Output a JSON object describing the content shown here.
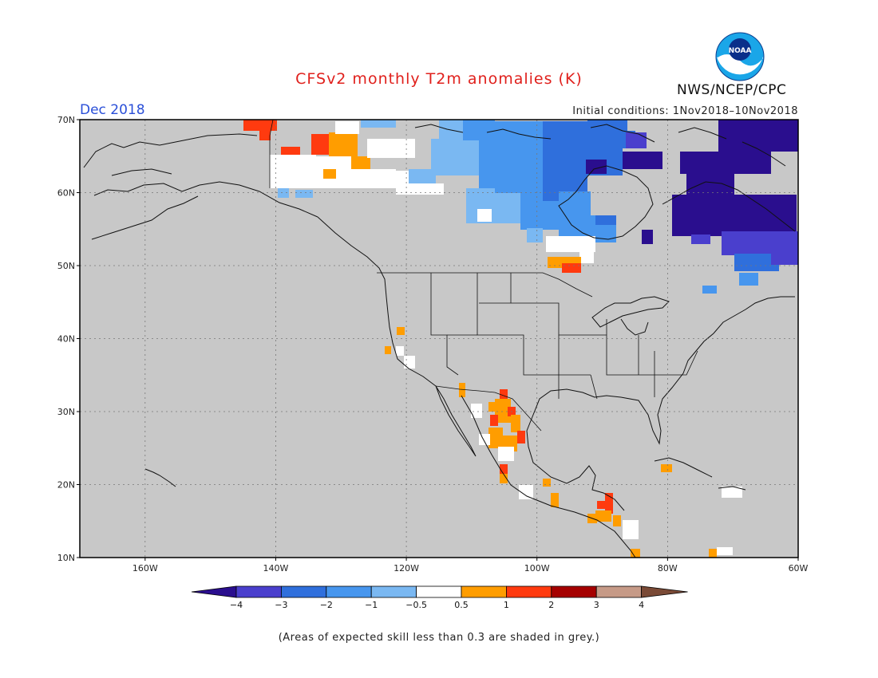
{
  "header": {
    "title": "CFSv2 monthly T2m anomalies (K)",
    "month": "Dec 2018",
    "initial_conditions": "Initial conditions: 1Nov2018–10Nov2018",
    "agency": "NWS/NCEP/CPC",
    "logo_text": "NOAA"
  },
  "axes": {
    "lat_labels": [
      "70N",
      "60N",
      "50N",
      "40N",
      "30N",
      "20N",
      "10N"
    ],
    "lon_labels": [
      "160W",
      "140W",
      "120W",
      "100W",
      "80W",
      "60W"
    ],
    "lat_range": [
      10,
      70
    ],
    "lon_range": [
      -170,
      -60
    ]
  },
  "colorbar": {
    "labels": [
      "−4",
      "−3",
      "−2",
      "−1",
      "−0.5",
      "0.5",
      "1",
      "2",
      "3",
      "4"
    ],
    "colors": [
      "#2a0e8e",
      "#4a3fcd",
      "#2f6fdc",
      "#4796ee",
      "#7ab8f2",
      "#ffffff",
      "#ff9d00",
      "#ff3a0f",
      "#a50000",
      "#c69a87",
      "#7a4a36"
    ]
  },
  "footnote": "(Areas of expected skill less than 0.3 are shaded in grey.)",
  "colors": {
    "land_skill_grey": "#c8c8c8",
    "title_red": "#e0201c",
    "month_blue": "#2a4fd8"
  }
}
